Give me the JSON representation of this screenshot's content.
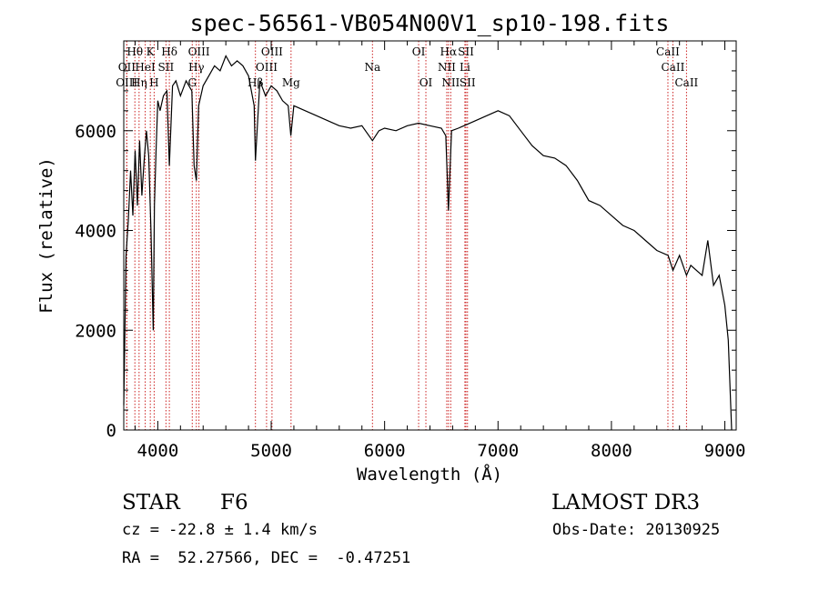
{
  "chart_data": {
    "type": "line",
    "title": "spec-56561-VB054N00V1_sp10-198.fits",
    "xlabel": "Wavelength (Å)",
    "ylabel": "Flux (relative)",
    "xlim": [
      3700,
      9100
    ],
    "ylim": [
      0,
      7800
    ],
    "xticks": [
      4000,
      5000,
      6000,
      7000,
      8000,
      9000
    ],
    "yticks": [
      0,
      2000,
      4000,
      6000
    ],
    "series": [
      {
        "name": "flux",
        "x": [
          3700,
          3720,
          3740,
          3760,
          3780,
          3800,
          3820,
          3840,
          3860,
          3880,
          3900,
          3920,
          3940,
          3960,
          3970,
          3985,
          4000,
          4020,
          4050,
          4080,
          4102,
          4130,
          4160,
          4200,
          4250,
          4300,
          4320,
          4340,
          4360,
          4400,
          4450,
          4500,
          4550,
          4600,
          4650,
          4700,
          4750,
          4800,
          4850,
          4861,
          4900,
          4950,
          5000,
          5050,
          5100,
          5150,
          5173,
          5200,
          5300,
          5400,
          5500,
          5600,
          5700,
          5800,
          5893,
          5950,
          6000,
          6100,
          6200,
          6300,
          6400,
          6500,
          6540,
          6563,
          6590,
          6650,
          6700,
          6800,
          6900,
          7000,
          7100,
          7200,
          7300,
          7400,
          7500,
          7600,
          7700,
          7800,
          7900,
          8000,
          8100,
          8200,
          8300,
          8400,
          8500,
          8542,
          8600,
          8662,
          8700,
          8800,
          8850,
          8900,
          8950,
          9000,
          9030,
          9060
        ],
        "y": [
          500,
          3500,
          4200,
          5200,
          4300,
          5600,
          4500,
          5800,
          4700,
          5400,
          6000,
          5500,
          4000,
          2000,
          4500,
          5600,
          6600,
          6400,
          6700,
          6800,
          5300,
          6900,
          7000,
          6700,
          7000,
          6800,
          5300,
          5000,
          6500,
          6900,
          7100,
          7300,
          7200,
          7500,
          7300,
          7400,
          7300,
          7100,
          6500,
          5400,
          7000,
          6700,
          6900,
          6800,
          6600,
          6500,
          5900,
          6500,
          6400,
          6300,
          6200,
          6100,
          6050,
          6100,
          5800,
          6000,
          6050,
          6000,
          6100,
          6150,
          6100,
          6050,
          5900,
          4400,
          6000,
          6050,
          6100,
          6200,
          6300,
          6400,
          6300,
          6000,
          5700,
          5500,
          5450,
          5300,
          5000,
          4600,
          4500,
          4300,
          4100,
          4000,
          3800,
          3600,
          3500,
          3200,
          3500,
          3100,
          3300,
          3100,
          3800,
          2900,
          3100,
          2500,
          1800,
          0
        ]
      }
    ],
    "lines": [
      {
        "name": "Hθ",
        "wl": 3798,
        "row": 0
      },
      {
        "name": "K",
        "wl": 3934,
        "row": 0
      },
      {
        "name": "Hδ",
        "wl": 4102,
        "row": 0
      },
      {
        "name": "OIII",
        "wl": 4363,
        "row": 0
      },
      {
        "name": "OIII",
        "wl": 5007,
        "row": 0
      },
      {
        "name": "OI",
        "wl": 6300,
        "row": 0
      },
      {
        "name": "Hα",
        "wl": 6563,
        "row": 0
      },
      {
        "name": "SII",
        "wl": 6717,
        "row": 0
      },
      {
        "name": "CaII",
        "wl": 8498,
        "row": 0
      },
      {
        "name": "OII",
        "wl": 3727,
        "row": 1
      },
      {
        "name": "HeI",
        "wl": 3889,
        "row": 1
      },
      {
        "name": "SII",
        "wl": 4072,
        "row": 1
      },
      {
        "name": "Hγ",
        "wl": 4340,
        "row": 1
      },
      {
        "name": "OIII",
        "wl": 4959,
        "row": 1
      },
      {
        "name": "Na",
        "wl": 5893,
        "row": 1
      },
      {
        "name": "NII",
        "wl": 6548,
        "row": 1
      },
      {
        "name": "Li",
        "wl": 6708,
        "row": 1
      },
      {
        "name": "CaII",
        "wl": 8542,
        "row": 1
      },
      {
        "name": "OIII",
        "wl": 3726,
        "row": 2
      },
      {
        "name": "Hη",
        "wl": 3835,
        "row": 2
      },
      {
        "name": "H",
        "wl": 3968,
        "row": 2
      },
      {
        "name": "G",
        "wl": 4304,
        "row": 2
      },
      {
        "name": "Hβ",
        "wl": 4861,
        "row": 2
      },
      {
        "name": "Mg",
        "wl": 5175,
        "row": 2
      },
      {
        "name": "OI",
        "wl": 6364,
        "row": 2
      },
      {
        "name": "NII",
        "wl": 6583,
        "row": 2
      },
      {
        "name": "SII",
        "wl": 6731,
        "row": 2
      },
      {
        "name": "CaII",
        "wl": 8662,
        "row": 2
      }
    ]
  },
  "info": {
    "class": "STAR",
    "subclass": "F6",
    "survey": "LAMOST DR3",
    "cz": "cz = -22.8 ± 1.4 km/s",
    "obs_date": "Obs-Date: 20130925",
    "radec": "RA =  52.27566, DEC =  -0.47251"
  },
  "colors": {
    "line_marker": "#cc2222",
    "spectrum": "#000000"
  }
}
